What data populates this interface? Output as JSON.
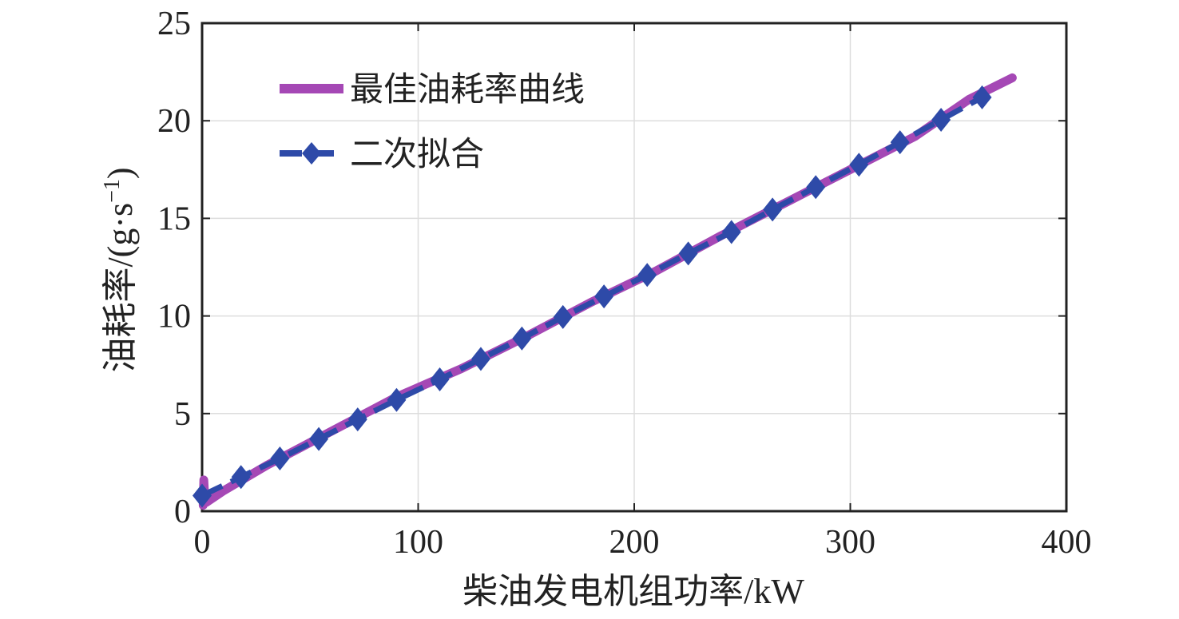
{
  "chart_data": {
    "type": "line",
    "title": "",
    "xlabel": "柴油发电机组功率/kW",
    "ylabel_main": "油耗率/(g·s",
    "ylabel_sup": "−1",
    "ylabel_close": ")",
    "xlim": [
      0,
      400
    ],
    "ylim": [
      0,
      25
    ],
    "xticks": [
      "0",
      "100",
      "200",
      "300",
      "400"
    ],
    "yticks": [
      "0",
      "5",
      "10",
      "15",
      "20",
      "25"
    ],
    "grid": true,
    "legend_position": "top-left",
    "series": [
      {
        "name": "最佳油耗率曲线",
        "style": "solid",
        "color": "#A548B5",
        "points": [
          [
            0.5,
            0.3
          ],
          [
            0.8,
            1.6
          ],
          [
            1.2,
            0.8
          ],
          [
            2,
            0.45
          ],
          [
            10,
            1.05
          ],
          [
            30,
            2.35
          ],
          [
            60,
            4.1
          ],
          [
            90,
            5.85
          ],
          [
            120,
            7.3
          ],
          [
            150,
            8.95
          ],
          [
            180,
            10.7
          ],
          [
            210,
            12.3
          ],
          [
            240,
            14.1
          ],
          [
            270,
            15.8
          ],
          [
            300,
            17.5
          ],
          [
            330,
            19.2
          ],
          [
            355,
            21.1
          ],
          [
            375,
            22.2
          ]
        ]
      },
      {
        "name": "二次拟合",
        "style": "dashed-diamond",
        "color": "#2E4AA8",
        "points": [
          [
            0,
            0.8
          ],
          [
            18,
            1.75
          ],
          [
            36,
            2.7
          ],
          [
            54,
            3.7
          ],
          [
            72,
            4.7
          ],
          [
            90,
            5.7
          ],
          [
            110,
            6.75
          ],
          [
            129,
            7.8
          ],
          [
            148,
            8.85
          ],
          [
            167,
            9.95
          ],
          [
            186,
            11.0
          ],
          [
            206,
            12.1
          ],
          [
            225,
            13.2
          ],
          [
            245,
            14.3
          ],
          [
            264,
            15.45
          ],
          [
            284,
            16.6
          ],
          [
            304,
            17.75
          ],
          [
            323,
            18.9
          ],
          [
            342,
            20.05
          ],
          [
            361,
            21.2
          ]
        ]
      }
    ]
  }
}
